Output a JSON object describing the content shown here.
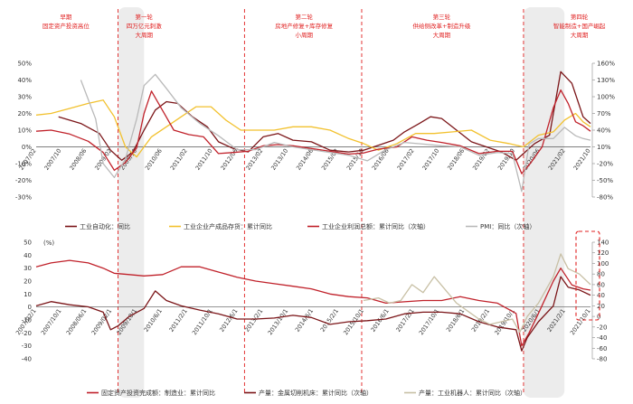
{
  "phases": [
    {
      "label": "早期",
      "sub": "固定资产投资高位",
      "sub2": ""
    },
    {
      "label": "第一轮",
      "sub": "四万亿元刺激",
      "sub2": "大周期"
    },
    {
      "label": "第二轮",
      "sub": "房地产修复+库存修复",
      "sub2": "小周期"
    },
    {
      "label": "第三轮",
      "sub": "供给侧改革+制造升级",
      "sub2": "大周期"
    },
    {
      "label": "第四轮",
      "sub": "智能制造+国产崛起",
      "sub2": "大周期"
    }
  ],
  "colors": {
    "dark_red": "#7b1518",
    "yellow": "#f2c12e",
    "red": "#c0212a",
    "gray": "#b9b9b9",
    "khaki": "#c8c0a5",
    "dashed_red": "#e02020",
    "shade": "#ececec"
  },
  "chart_data": [
    {
      "type": "line",
      "y_left": {
        "ticks": [
          "50%",
          "40%",
          "30%",
          "20%",
          "10%",
          "0%",
          "-10%",
          "-20%",
          "-30%"
        ],
        "lim": [
          -30,
          50
        ]
      },
      "y_right": {
        "ticks": [
          "160%",
          "130%",
          "100%",
          "70%",
          "40%",
          "10%",
          "-20%",
          "-50%",
          "-80%"
        ],
        "lim": [
          -80,
          160
        ]
      },
      "x_ticks": [
        "2007/02",
        "2007/10",
        "2008/06",
        "2009/02",
        "2009/10",
        "2010/06",
        "2011/02",
        "2011/10",
        "2012/06",
        "2013/02",
        "2013/10",
        "2014/06",
        "2015/02",
        "2015/10",
        "2016/06",
        "2017/02",
        "2017/10",
        "2018/06",
        "2019/02",
        "2019/10",
        "2020/06",
        "2021/02",
        "2021/10"
      ],
      "legend": [
        "工业自动化：同比",
        "工业企业产成品存货：累计同比",
        "工业企业利润总额：累计同比（次轴）",
        "PMI：同比（次轴）"
      ],
      "series": [
        {
          "name": "工业自动化：同比",
          "axis": "left",
          "x": [
            2007.7,
            2008.3,
            2008.8,
            2009.1,
            2009.4,
            2009.7,
            2010.0,
            2010.3,
            2010.6,
            2010.9,
            2011.3,
            2011.7,
            2012.0,
            2012.4,
            2012.8,
            2013.2,
            2013.6,
            2014.0,
            2014.5,
            2015.0,
            2015.5,
            2015.9,
            2016.3,
            2016.7,
            2017.0,
            2017.4,
            2017.7,
            2018.0,
            2018.4,
            2018.8,
            2019.2,
            2019.6,
            2020.0,
            2020.2,
            2020.5,
            2020.9,
            2021.2,
            2021.5,
            2021.8,
            2022.0
          ],
          "y": [
            18,
            14,
            8,
            -2,
            -8,
            -3,
            10,
            22,
            27,
            26,
            18,
            12,
            3,
            -1,
            -3,
            6,
            8,
            4,
            3,
            -2,
            -3,
            -2,
            1,
            4,
            9,
            14,
            18,
            17,
            10,
            3,
            0,
            -3,
            -8,
            -4,
            2,
            7,
            45,
            38,
            18,
            14
          ]
        },
        {
          "name": "工业企业产成品存货：累计同比",
          "axis": "left",
          "x": [
            2007.1,
            2007.5,
            2008.0,
            2008.5,
            2008.9,
            2009.2,
            2009.5,
            2009.8,
            2010.2,
            2010.6,
            2011.0,
            2011.4,
            2011.8,
            2012.2,
            2012.6,
            2013.0,
            2013.5,
            2014.0,
            2014.5,
            2015.0,
            2015.5,
            2015.9,
            2016.3,
            2016.8,
            2017.3,
            2017.8,
            2018.3,
            2018.8,
            2019.3,
            2019.8,
            2020.2,
            2020.6,
            2021.0,
            2021.3,
            2021.6,
            2021.8,
            2022.0
          ],
          "y": [
            19,
            20,
            23,
            26,
            28,
            18,
            0,
            -6,
            6,
            12,
            18,
            24,
            24,
            16,
            10,
            10,
            10,
            12,
            12,
            10,
            5,
            2,
            -2,
            2,
            8,
            8,
            9,
            10,
            4,
            2,
            0,
            7,
            9,
            16,
            20,
            15,
            12
          ]
        },
        {
          "name": "工业企业利润总额：累计同比（次轴）",
          "axis": "right",
          "x": [
            2007.1,
            2007.5,
            2008.0,
            2008.5,
            2008.9,
            2009.2,
            2009.5,
            2009.8,
            2010.0,
            2010.2,
            2010.5,
            2010.8,
            2011.2,
            2011.6,
            2012.0,
            2012.4,
            2012.8,
            2013.2,
            2013.6,
            2014.0,
            2014.5,
            2015.0,
            2015.5,
            2015.9,
            2016.3,
            2016.8,
            2017.2,
            2017.6,
            2018.0,
            2018.5,
            2019.0,
            2019.5,
            2019.9,
            2020.15,
            2020.4,
            2020.7,
            2021.0,
            2021.2,
            2021.4,
            2021.6,
            2021.8,
            2022.0
          ],
          "y": [
            38,
            40,
            33,
            20,
            0,
            -32,
            -18,
            8,
            70,
            110,
            75,
            40,
            32,
            28,
            -2,
            0,
            2,
            12,
            14,
            12,
            7,
            2,
            -3,
            -1,
            6,
            10,
            28,
            22,
            18,
            12,
            -2,
            2,
            2,
            -38,
            -18,
            10,
            80,
            112,
            88,
            55,
            48,
            38
          ]
        },
        {
          "name": "PMI：同比（次轴）",
          "axis": "right",
          "x": [
            2008.3,
            2008.7,
            2008.9,
            2009.2,
            2009.5,
            2009.8,
            2010.0,
            2010.3,
            2010.6,
            2011.0,
            2011.5,
            2012.0,
            2012.5,
            2013.0,
            2013.5,
            2014.0,
            2014.5,
            2015.0,
            2015.5,
            2016.0,
            2016.5,
            2017.0,
            2017.5,
            2018.0,
            2018.5,
            2019.0,
            2019.5,
            2019.9,
            2020.15,
            2020.35,
            2020.6,
            2021.0,
            2021.3,
            2021.6,
            2021.8,
            2022.0
          ],
          "y": [
            130,
            60,
            -20,
            -45,
            -12,
            60,
            120,
            140,
            115,
            80,
            52,
            30,
            5,
            5,
            18,
            10,
            5,
            0,
            -5,
            -15,
            5,
            18,
            15,
            12,
            10,
            -5,
            0,
            -2,
            -70,
            15,
            25,
            25,
            45,
            30,
            25,
            22
          ]
        }
      ]
    },
    {
      "type": "line",
      "y_left": {
        "ticks": [
          "50",
          "40",
          "30",
          "20",
          "10",
          "0",
          "-10",
          "-20",
          "-30",
          "-40"
        ],
        "lim": [
          -40,
          50
        ]
      },
      "left_unit": "(%)",
      "y_right": {
        "ticks": [
          "140",
          "120",
          "100",
          "80",
          "60",
          "40",
          "20",
          "0",
          "-20",
          "-40",
          "-60",
          "-80"
        ],
        "lim": [
          -80,
          140
        ]
      },
      "x_ticks": [
        "2007/02/1",
        "2007/10/1",
        "2008/06/1",
        "2009/02/1",
        "2009/10/1",
        "2010/6/1",
        "2011/2/1",
        "2011/10/1",
        "2012/6/1",
        "2013/2/1",
        "2013/10/1",
        "2014/6/1",
        "2015/2/1",
        "2015/10/1",
        "2016/6/1",
        "2017/2/1",
        "2017/10/1",
        "2018/6/1",
        "2019/2/1",
        "2019/10/1",
        "2020/6/1",
        "2021/2/1",
        "2021/10/1"
      ],
      "legend": [
        "固定资产投资完成额：制造业：累计同比",
        "产量：金属切削机床：累计同比（次轴）",
        "产量：工业机器人：累计同比（次轴）"
      ],
      "series": [
        {
          "name": "固定资产投资完成额：制造业：累计同比",
          "axis": "left",
          "x": [
            2007.1,
            2007.5,
            2008.0,
            2008.5,
            2008.9,
            2009.2,
            2009.6,
            2010.0,
            2010.5,
            2011.0,
            2011.5,
            2012.0,
            2012.5,
            2013.0,
            2013.5,
            2014.0,
            2014.5,
            2015.0,
            2015.5,
            2016.0,
            2016.5,
            2017.0,
            2017.5,
            2018.0,
            2018.5,
            2019.0,
            2019.5,
            2020.0,
            2020.15,
            2020.35,
            2020.6,
            2021.0,
            2021.2,
            2021.5,
            2021.8,
            2022.0
          ],
          "y": [
            31,
            34,
            36,
            34,
            30,
            26,
            25,
            24,
            25,
            31,
            31,
            27,
            23,
            20,
            18,
            16,
            14,
            10,
            8,
            7,
            3,
            4,
            5,
            5,
            8,
            5,
            3,
            -5,
            -30,
            -20,
            -5,
            20,
            30,
            17,
            14,
            13
          ]
        },
        {
          "name": "产量：金属切削机床：累计同比（次轴）",
          "axis": "right",
          "x": [
            2007.1,
            2007.5,
            2008.0,
            2008.5,
            2008.9,
            2009.1,
            2009.3,
            2009.6,
            2010.0,
            2010.3,
            2010.6,
            2011.0,
            2011.5,
            2012.0,
            2012.5,
            2013.0,
            2013.5,
            2014.0,
            2014.5,
            2015.0,
            2015.5,
            2016.0,
            2016.5,
            2017.0,
            2017.5,
            2018.0,
            2018.5,
            2019.0,
            2019.5,
            2020.0,
            2020.15,
            2020.3,
            2020.6,
            2021.0,
            2021.2,
            2021.4,
            2021.7,
            2022.0
          ],
          "y": [
            20,
            28,
            22,
            18,
            8,
            -25,
            -18,
            0,
            15,
            48,
            30,
            20,
            12,
            5,
            -5,
            -5,
            -3,
            2,
            -2,
            -15,
            -10,
            -8,
            -5,
            5,
            8,
            8,
            5,
            -10,
            -20,
            -25,
            -65,
            -40,
            -10,
            20,
            75,
            55,
            50,
            40
          ]
        },
        {
          "name": "产量：工业机器人：累计同比（次轴）",
          "axis": "right",
          "x": [
            2015.9,
            2016.3,
            2016.6,
            2016.9,
            2017.2,
            2017.5,
            2017.8,
            2018.1,
            2018.4,
            2018.7,
            2019.0,
            2019.3,
            2019.6,
            2019.9,
            2020.1,
            2020.3,
            2020.6,
            2021.0,
            2021.2,
            2021.4,
            2021.7,
            2022.0
          ],
          "y": [
            30,
            35,
            25,
            30,
            60,
            45,
            75,
            50,
            25,
            10,
            -5,
            -15,
            -10,
            -5,
            -30,
            0,
            25,
            75,
            118,
            90,
            80,
            60
          ]
        }
      ]
    }
  ]
}
